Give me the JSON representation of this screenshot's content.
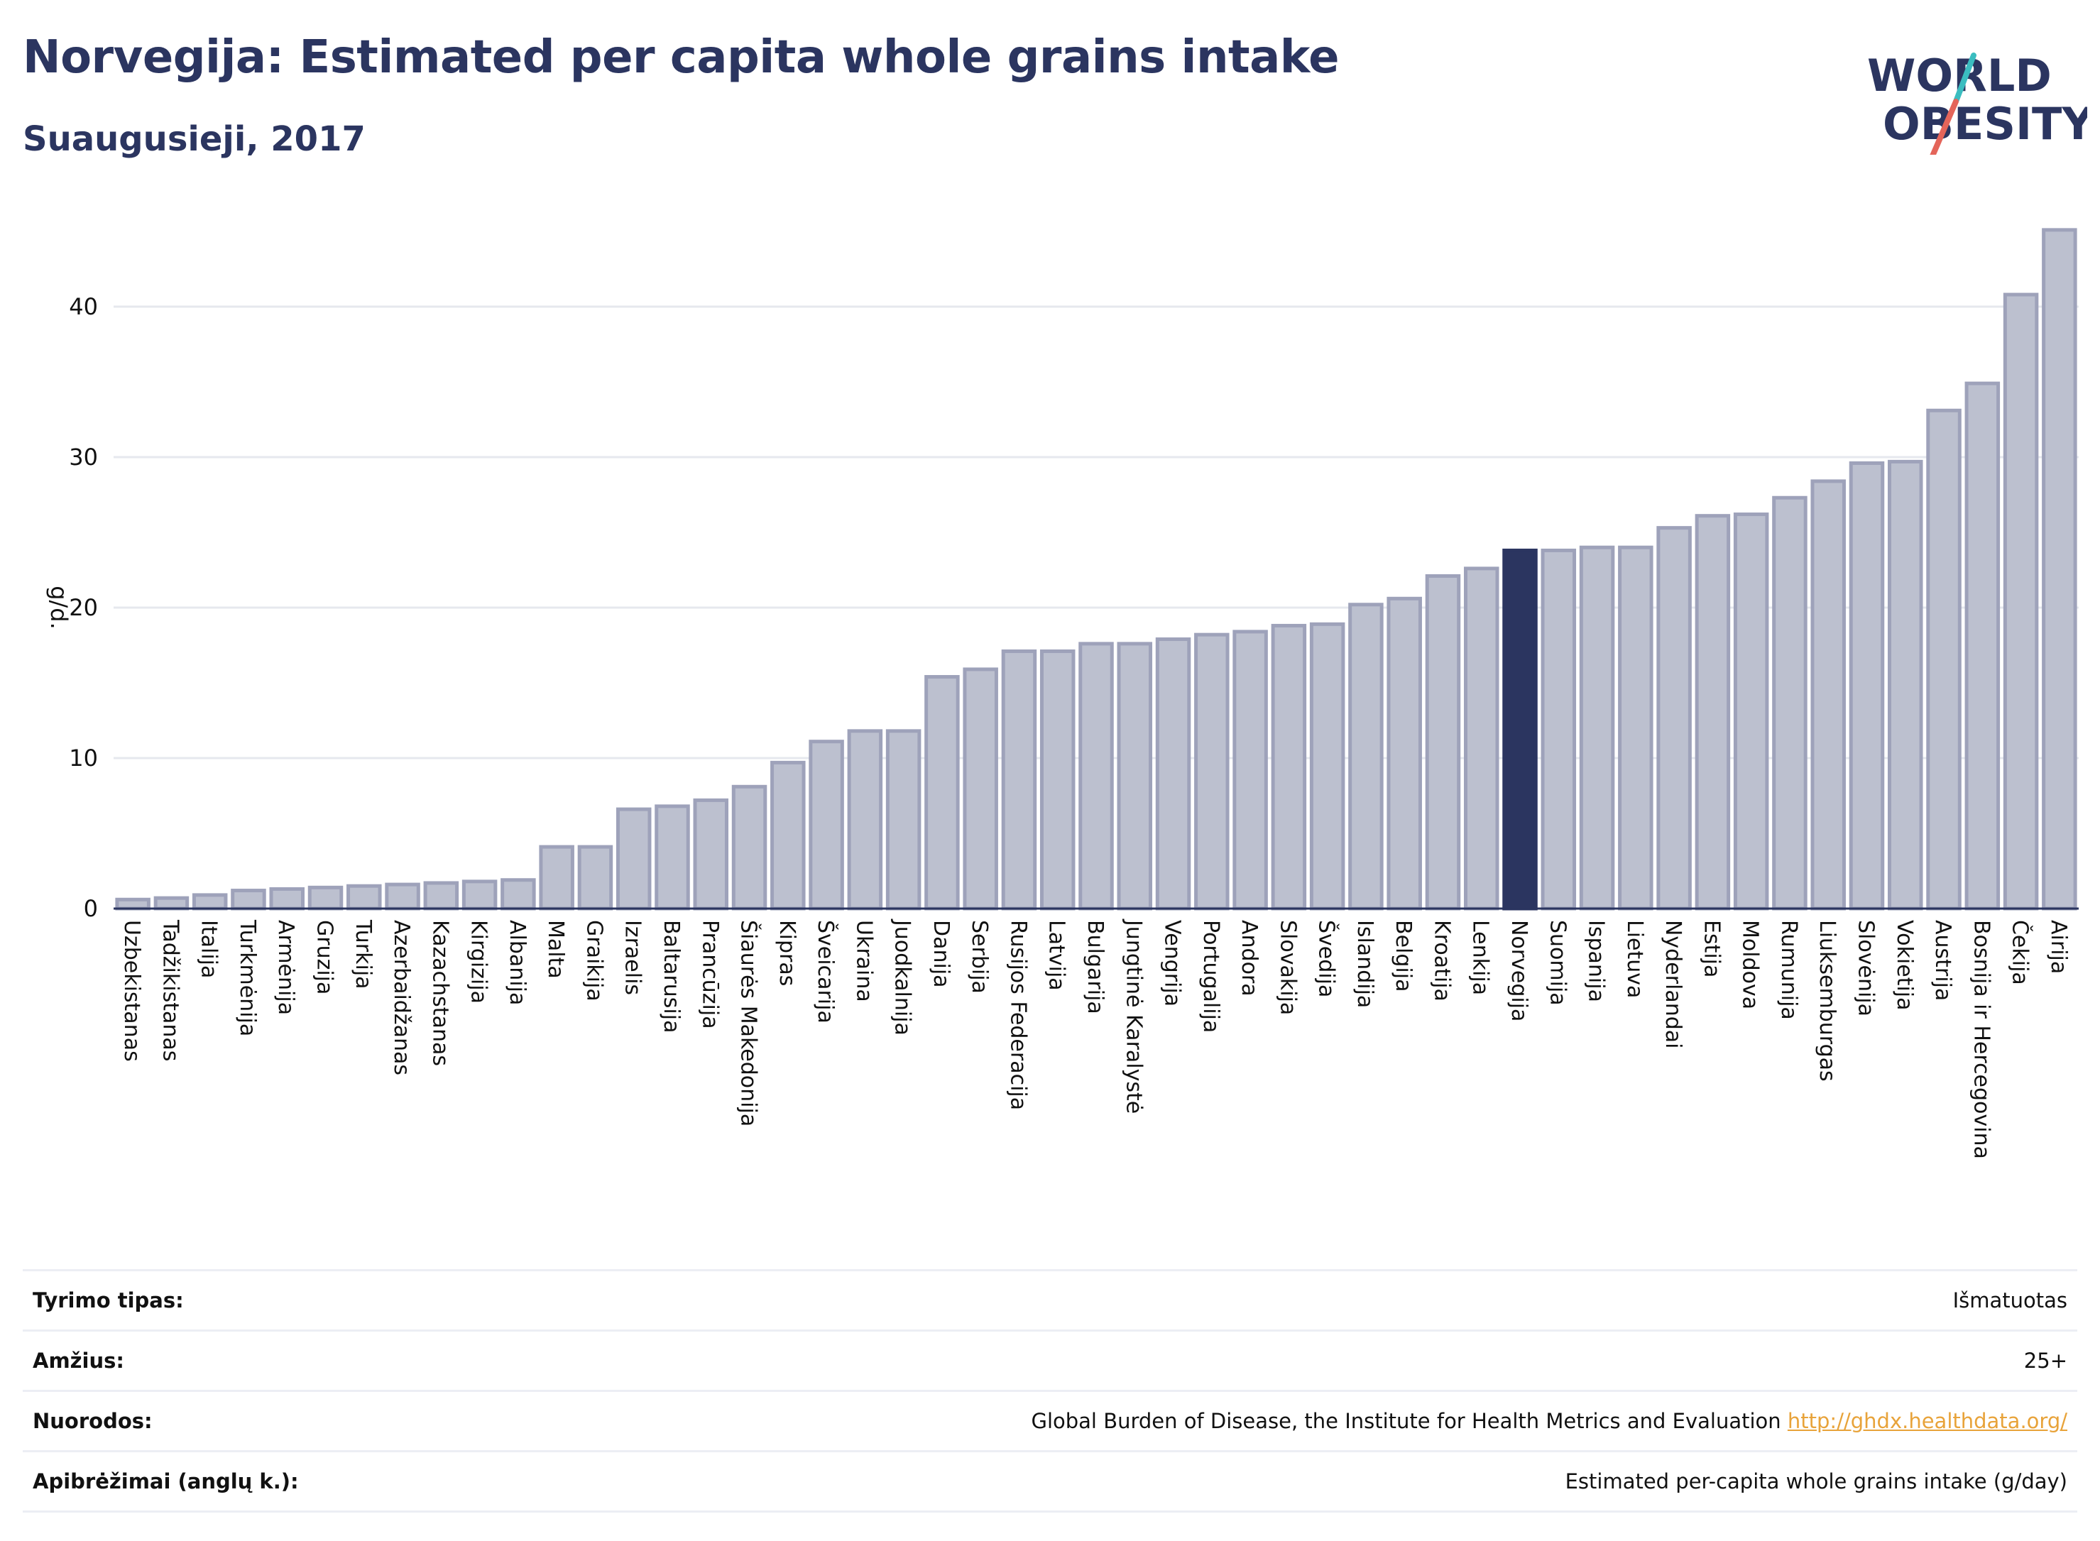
{
  "header": {
    "title": "Norvegija: Estimated per capita whole grains intake",
    "subtitle": "Suaugusieji, 2017"
  },
  "logo": {
    "line1": "WORLD",
    "line2": "OBESITY"
  },
  "colors": {
    "bar": "#bcc0cf",
    "bar_stroke": "#9ea2ba",
    "highlight": "#2b3560",
    "text": "#2b3560",
    "slash_teal": "#3bbdc0",
    "slash_red": "#e4655a"
  },
  "chart_data": {
    "type": "bar",
    "ylabel": "g/d.",
    "ylim": [
      0,
      46
    ],
    "yticks": [
      0,
      10,
      20,
      30,
      40
    ],
    "grid": true,
    "highlight": "Norvegija",
    "categories": [
      "Uzbekistanas",
      "Tadžikistanas",
      "Italija",
      "Turkmėnija",
      "Armėnija",
      "Gruzija",
      "Turkija",
      "Azerbaidžanas",
      "Kazachstanas",
      "Kirgizija",
      "Albanija",
      "Malta",
      "Graikija",
      "Izraelis",
      "Baltarusija",
      "Prancūzija",
      "Šiaurės Makedonija",
      "Kipras",
      "Šveicarija",
      "Ukraina",
      "Juodkalnija",
      "Danija",
      "Serbija",
      "Rusijos Federacija",
      "Latvija",
      "Bulgarija",
      "Jungtinė Karalystė",
      "Vengrija",
      "Portugalija",
      "Andora",
      "Slovakija",
      "Švedija",
      "Islandija",
      "Belgija",
      "Kroatija",
      "Lenkija",
      "Norvegija",
      "Suomija",
      "Ispanija",
      "Lietuva",
      "Nyderlandai",
      "Estija",
      "Moldova",
      "Rumunija",
      "Liuksemburgas",
      "Slovėnija",
      "Vokietija",
      "Austrija",
      "Bosnija ir Hercegovina",
      "Čekija",
      "Airija"
    ],
    "values": [
      0.6,
      0.7,
      0.9,
      1.2,
      1.3,
      1.4,
      1.5,
      1.6,
      1.7,
      1.8,
      1.9,
      4.1,
      4.1,
      6.6,
      6.8,
      7.2,
      8.1,
      9.7,
      11.1,
      11.8,
      11.8,
      15.4,
      15.9,
      17.1,
      17.1,
      17.6,
      17.6,
      17.9,
      18.2,
      18.4,
      18.8,
      18.9,
      20.2,
      20.6,
      22.1,
      22.6,
      23.8,
      23.8,
      24.0,
      24.0,
      25.3,
      26.1,
      26.2,
      27.3,
      28.4,
      29.6,
      29.7,
      33.1,
      34.9,
      40.8,
      45.1
    ]
  },
  "meta": {
    "rows": [
      {
        "label": "Tyrimo tipas:",
        "value": "Išmatuotas"
      },
      {
        "label": "Amžius:",
        "value": "25+"
      },
      {
        "label": "Nuorodos:",
        "value": "Global Burden of Disease, the Institute for Health Metrics and Evaluation",
        "link": "http://ghdx.healthdata.org/"
      },
      {
        "label": "Apibrėžimai (anglų k.):",
        "value": "Estimated per-capita whole grains intake (g/day)"
      }
    ]
  }
}
